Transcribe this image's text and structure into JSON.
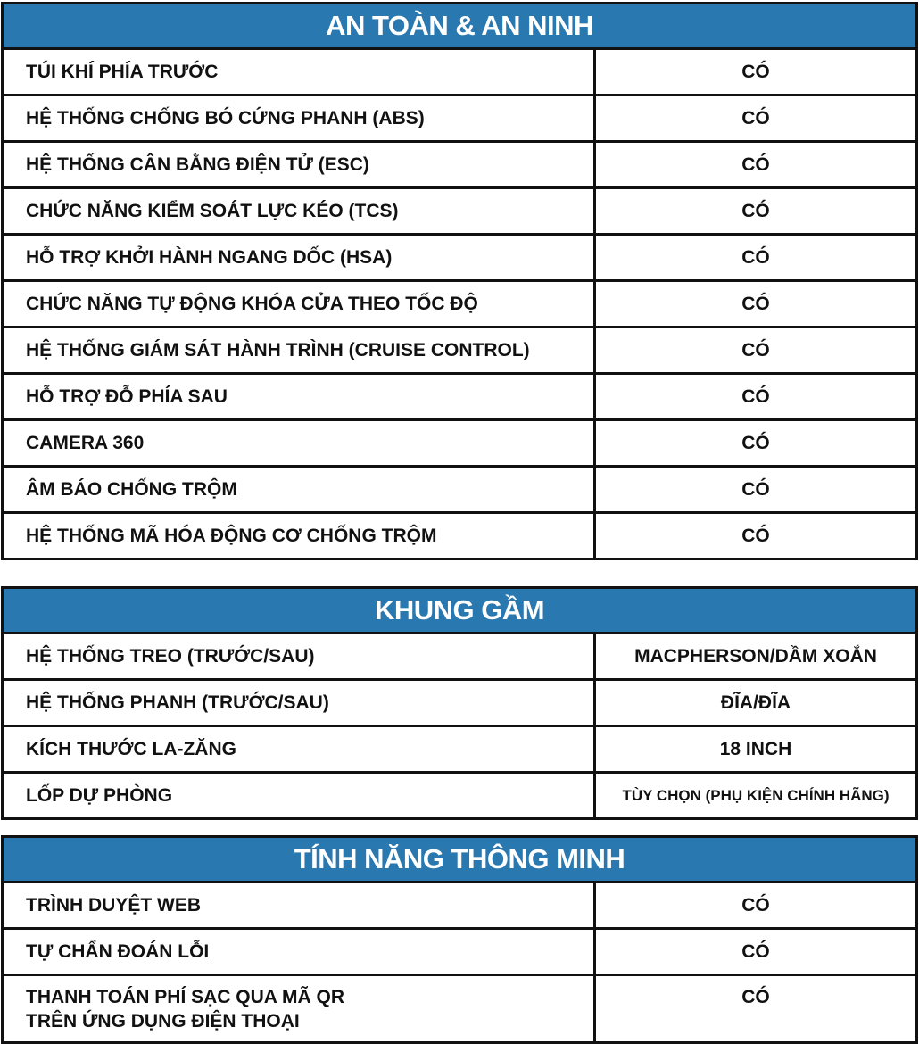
{
  "colors": {
    "header_bg": "#2a78b0",
    "header_text": "#ffffff",
    "border": "#111111"
  },
  "sections": [
    {
      "title": "AN TOÀN & AN NINH",
      "rows": [
        {
          "label": "TÚI KHÍ PHÍA TRƯỚC",
          "value": "CÓ"
        },
        {
          "label": "HỆ THỐNG CHỐNG BÓ CỨNG PHANH (ABS)",
          "value": "CÓ"
        },
        {
          "label": "HỆ THỐNG CÂN BẰNG ĐIỆN TỬ (ESC)",
          "value": "CÓ"
        },
        {
          "label": "CHỨC NĂNG KIỂM SOÁT LỰC KÉO (TCS)",
          "value": "CÓ"
        },
        {
          "label": "HỖ TRỢ KHỞI HÀNH NGANG DỐC (HSA)",
          "value": "CÓ"
        },
        {
          "label": "CHỨC NĂNG TỰ ĐỘNG KHÓA CỬA THEO TỐC ĐỘ",
          "value": "CÓ"
        },
        {
          "label": "HỆ THỐNG GIÁM SÁT HÀNH TRÌNH (CRUISE CONTROL)",
          "value": "CÓ"
        },
        {
          "label": "HỖ TRỢ ĐỖ PHÍA SAU",
          "value": "CÓ"
        },
        {
          "label": "CAMERA 360",
          "value": "CÓ"
        },
        {
          "label": "ÂM BÁO CHỐNG TRỘM",
          "value": "CÓ"
        },
        {
          "label": "HỆ THỐNG MÃ HÓA ĐỘNG CƠ CHỐNG TRỘM",
          "value": "CÓ"
        }
      ]
    },
    {
      "title": "KHUNG GẦM",
      "rows": [
        {
          "label": "HỆ THỐNG TREO (TRƯỚC/SAU)",
          "value": "MACPHERSON/DẦM XOẮN"
        },
        {
          "label": "HỆ THỐNG PHANH (TRƯỚC/SAU)",
          "value": "ĐĨA/ĐĨA"
        },
        {
          "label": "KÍCH THƯỚC LA-ZĂNG",
          "value": "18 INCH"
        },
        {
          "label": "LỐP DỰ PHÒNG",
          "value": "TÙY CHỌN (PHỤ KIỆN CHÍNH HÃNG)"
        }
      ]
    },
    {
      "title": "TÍNH NĂNG THÔNG MINH",
      "rows": [
        {
          "label": "TRÌNH DUYỆT WEB",
          "value": "CÓ"
        },
        {
          "label": "TỰ CHẨN ĐOÁN LỖI",
          "value": "CÓ"
        },
        {
          "label": "THANH TOÁN PHÍ SẠC QUA MÃ QR\nTRÊN ỨNG DỤNG ĐIỆN THOẠI",
          "value": "CÓ"
        }
      ]
    }
  ]
}
